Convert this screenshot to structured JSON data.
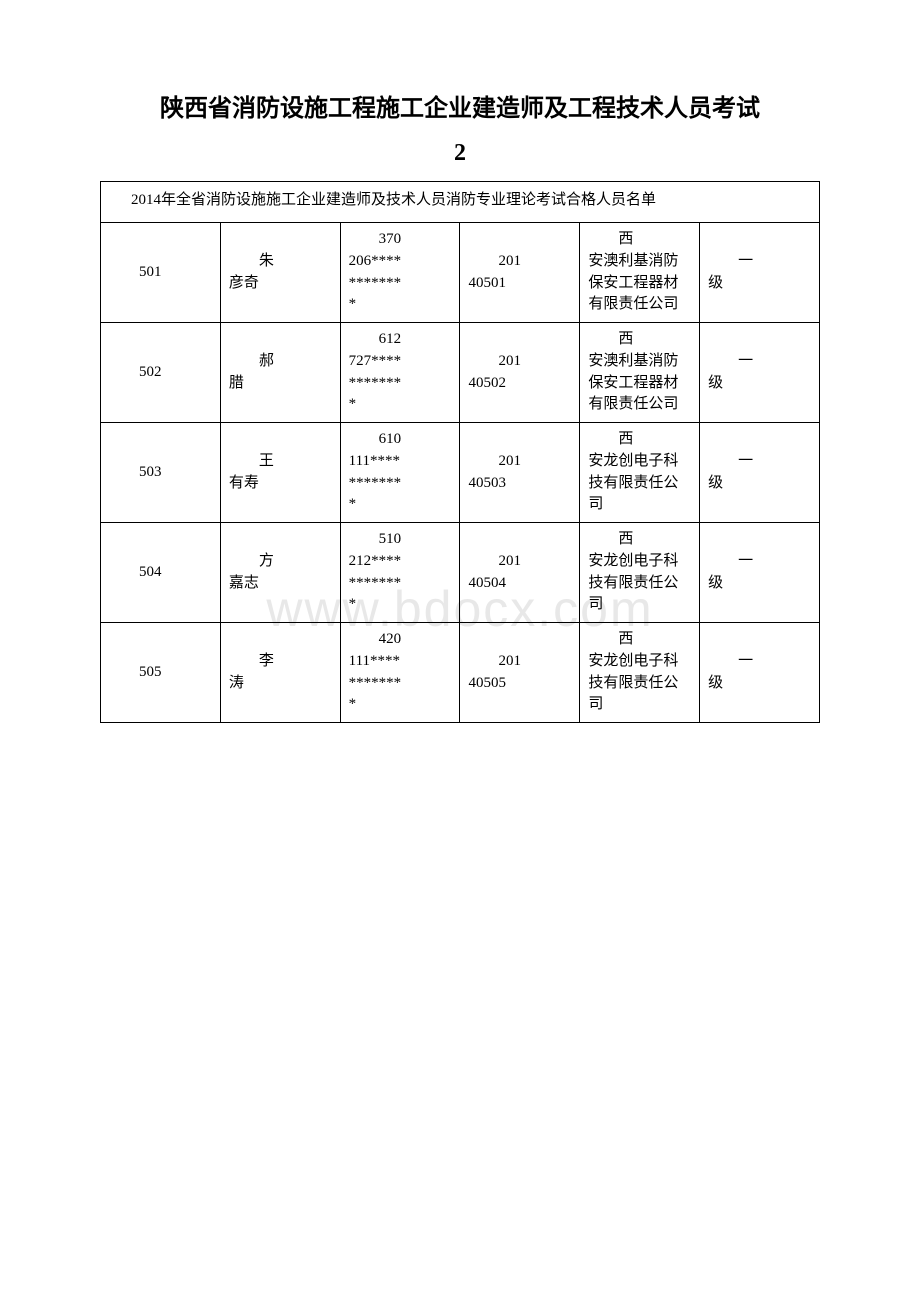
{
  "title": {
    "line1": "陕西省消防设施工程施工企业建造师及工程技术人员考试",
    "line2": "2"
  },
  "subtitle": "2014年全省消防设施施工企业建造师及技术人员消防专业理论考试合格人员名单",
  "watermark": "www.bdocx.com",
  "table": {
    "type": "table",
    "columns_widths": [
      170,
      82,
      96,
      78,
      80,
      110
    ],
    "border_color": "#000000",
    "background_color": "#ffffff",
    "font_size": 15,
    "rows": [
      {
        "index": "501",
        "name": "朱彦奇",
        "id": "370206************",
        "code": "20140501",
        "company": "西安澳利基消防保安工程器材有限责任公司",
        "level": "一级"
      },
      {
        "index": "502",
        "name": "郝腊",
        "id": "612727************",
        "code": "20140502",
        "company": "西安澳利基消防保安工程器材有限责任公司",
        "level": "一级"
      },
      {
        "index": "503",
        "name": "王有寿",
        "id": "610111************",
        "code": "20140503",
        "company": "西安龙创电子科技有限责任公司",
        "level": "一级"
      },
      {
        "index": "504",
        "name": "方嘉志",
        "id": "510212************",
        "code": "20140504",
        "company": "西安龙创电子科技有限责任公司",
        "level": "一级"
      },
      {
        "index": "505",
        "name": "李涛",
        "id": "420111************",
        "code": "20140505",
        "company": "西安龙创电子科技有限责任公司",
        "level": "一级"
      }
    ]
  }
}
